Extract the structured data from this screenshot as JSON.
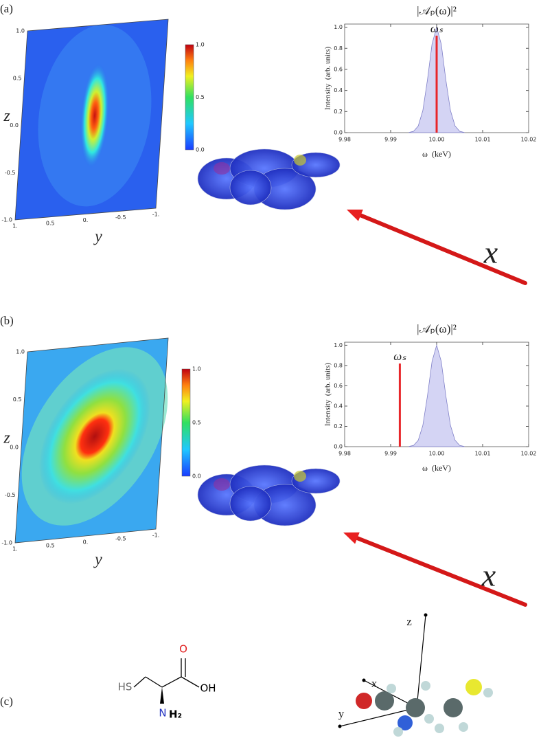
{
  "chart_data": [
    {
      "type": "area",
      "title": "|𝒜ₚ(ω)|²",
      "x_label": "ω  (keV)",
      "y_label": "Intensity  (arb. units)",
      "x": [
        9.994,
        9.995,
        9.996,
        9.997,
        9.998,
        9.999,
        10.0,
        10.001,
        10.002,
        10.003,
        10.004,
        10.005,
        10.006
      ],
      "values": [
        0.002,
        0.013,
        0.063,
        0.21,
        0.5,
        0.84,
        1,
        0.84,
        0.5,
        0.21,
        0.063,
        0.013,
        0.002
      ],
      "color": "#d4d4f4",
      "marker": {
        "label": "ωₛ",
        "x": 10.0,
        "y": 0.92,
        "color": "#e8262a"
      },
      "xlim": [
        9.98,
        10.02
      ],
      "ylim": [
        0,
        1.03
      ],
      "xticks": [
        9.98,
        9.99,
        {
          "value": 10,
          "label": "10.00"
        },
        10.01,
        10.02
      ],
      "yticks": [
        {
          "value": 0,
          "label": "0.0"
        },
        0.2,
        0.4,
        0.6,
        0.8,
        {
          "value": 1,
          "label": "1.0"
        }
      ]
    },
    {
      "type": "area",
      "title": "|𝒜ₚ(ω)|²",
      "x_label": "ω  (keV)",
      "y_label": "Intensity  (arb. units)",
      "x": [
        9.994,
        9.995,
        9.996,
        9.997,
        9.998,
        9.999,
        10.0,
        10.001,
        10.002,
        10.003,
        10.004,
        10.005,
        10.006
      ],
      "values": [
        0.002,
        0.013,
        0.063,
        0.21,
        0.5,
        0.84,
        1,
        0.84,
        0.5,
        0.21,
        0.063,
        0.013,
        0.002
      ],
      "color": "#d4d4f4",
      "marker": {
        "label": "ωₛ",
        "x": 9.992,
        "y": 0.82,
        "color": "#e8262a"
      },
      "xlim": [
        9.98,
        10.02
      ],
      "ylim": [
        0,
        1.03
      ],
      "xticks": [
        9.98,
        9.99,
        {
          "value": 10,
          "label": "10.00"
        },
        10.01,
        10.02
      ],
      "yticks": [
        {
          "value": 0,
          "label": "0.0"
        },
        0.2,
        0.4,
        0.6,
        0.8,
        {
          "value": 1,
          "label": "1.0"
        }
      ]
    }
  ],
  "panels": [
    {
      "label": "(a)",
      "heatmap": {
        "z_label": "z",
        "y_label": "y",
        "z_ticks": [
          "1.0",
          "0.5",
          "0.0",
          "-0.5",
          "-1.0"
        ],
        "y_ticks": [
          "1.",
          "0.5",
          "0.",
          "-0.5",
          "-1."
        ],
        "colorbar_ticks": [
          "1.0",
          "0.5",
          "0.0"
        ]
      },
      "beam_label": "x"
    },
    {
      "label": "(b)",
      "heatmap": {
        "z_label": "z",
        "y_label": "y",
        "z_ticks": [
          "1.0",
          "0.5",
          "0.0",
          "-0.5",
          "-1.0"
        ],
        "y_ticks": [
          "1.",
          "0.5",
          "0.",
          "-0.5",
          "-1."
        ],
        "colorbar_ticks": [
          "1.0",
          "0.5",
          "0.0"
        ]
      },
      "beam_label": "x"
    }
  ],
  "panel_c": {
    "label": "(c)",
    "structure": [
      "HS",
      "O",
      "OH",
      "N",
      "H₂"
    ],
    "axes": [
      "z",
      "x",
      "y"
    ]
  }
}
